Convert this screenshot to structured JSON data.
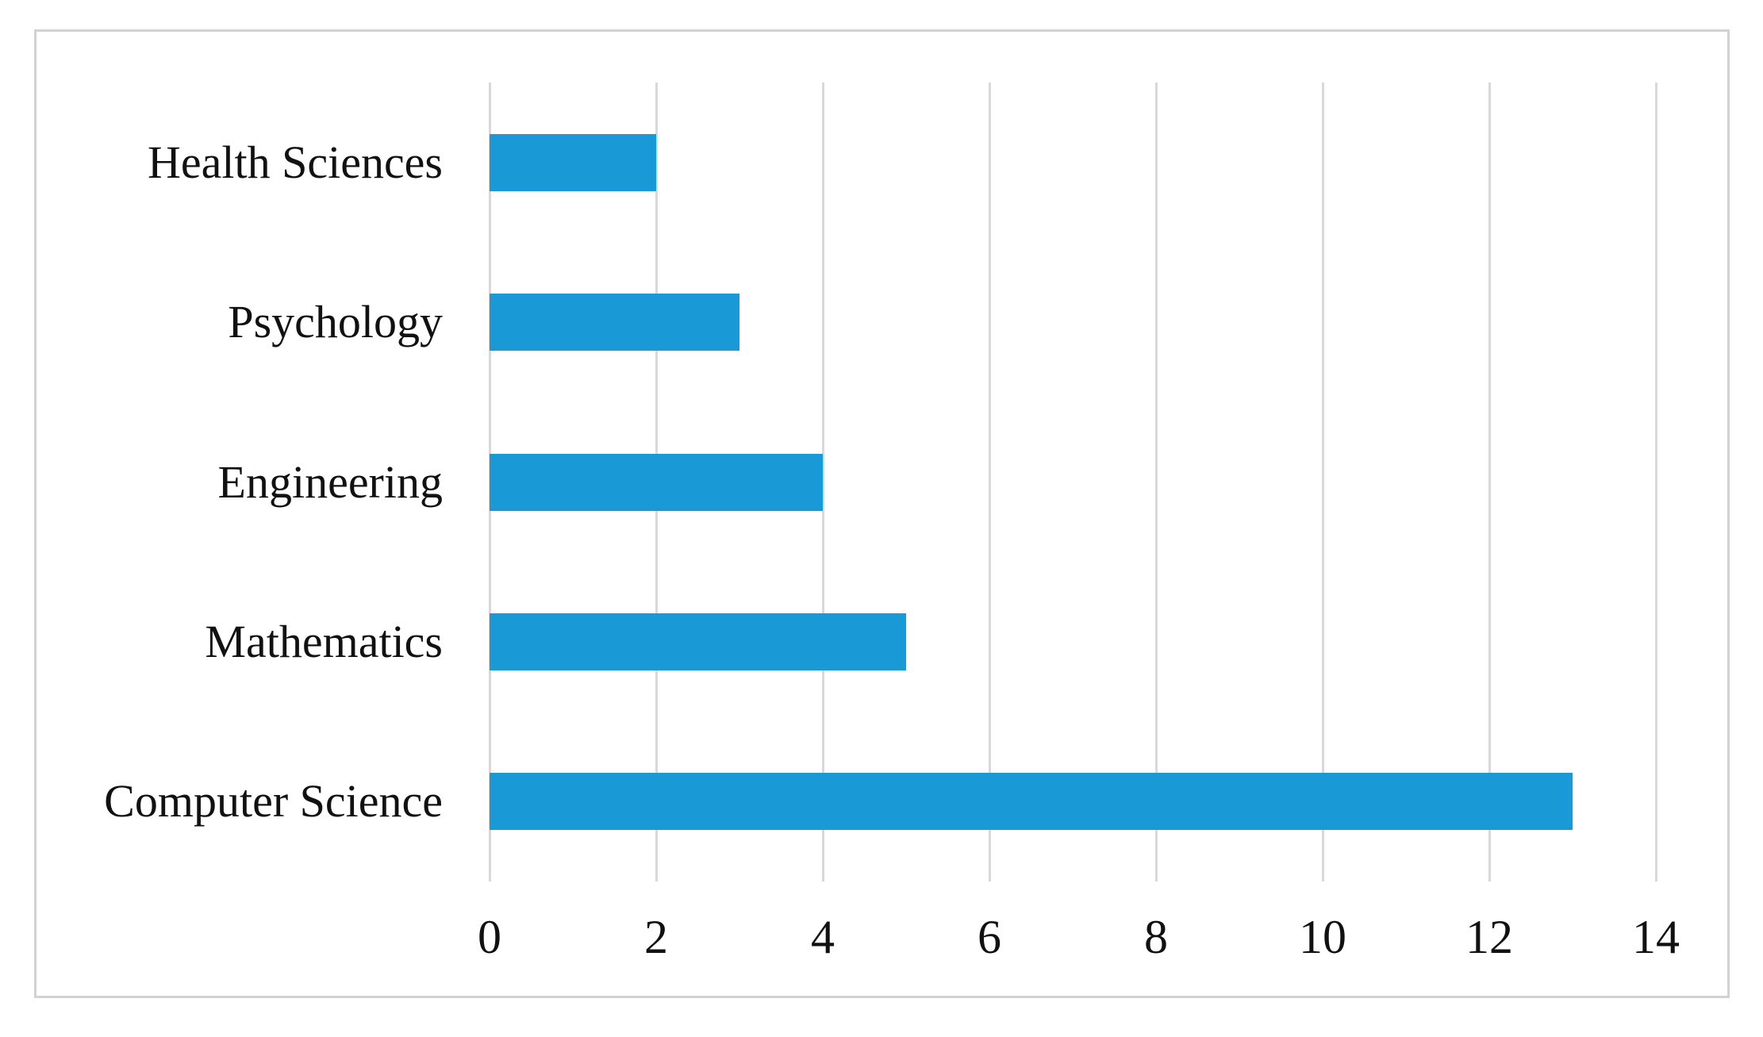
{
  "figure": {
    "background": "#ffffff",
    "border_color": "#d2d2d2"
  },
  "chart_data": {
    "type": "bar",
    "orientation": "horizontal",
    "title": "",
    "xlabel": "",
    "ylabel": "",
    "categories": [
      "Health Sciences",
      "Psychology",
      "Engineering",
      "Mathematics",
      "Computer Science"
    ],
    "values": [
      2,
      3,
      4,
      5,
      13
    ],
    "xlim": [
      0,
      14
    ],
    "xticks": [
      0,
      2,
      4,
      6,
      8,
      10,
      12,
      14
    ],
    "xtick_labels": [
      "0",
      "2",
      "4",
      "6",
      "8",
      "10",
      "12",
      "14"
    ],
    "grid": "vertical-only",
    "legend": "none",
    "bar_color": "#199ad6",
    "gridline_color": "#d9d9d9",
    "text_color": "#111111"
  }
}
